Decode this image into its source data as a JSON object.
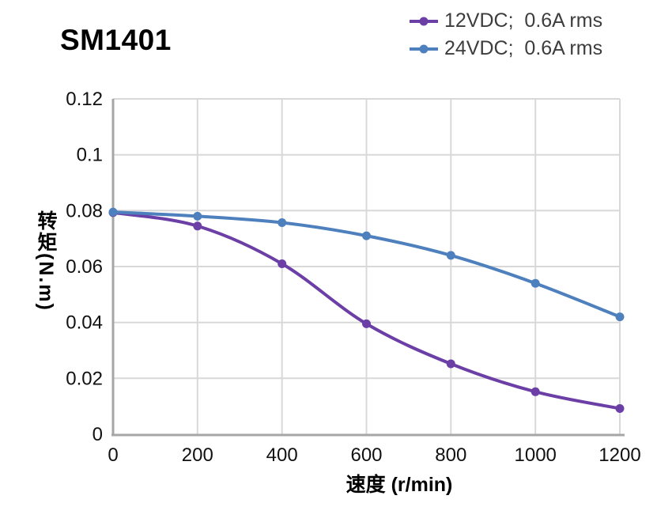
{
  "page": {
    "background": "#ffffff"
  },
  "chart_data": {
    "type": "line",
    "title": "SM1401",
    "xlabel": "速度 (r/min)",
    "ylabel": "转矩(N.m)",
    "xlim": [
      0,
      1200
    ],
    "ylim": [
      0,
      0.12
    ],
    "x_ticks": [
      0,
      200,
      400,
      600,
      800,
      1000,
      1200
    ],
    "y_ticks": [
      0,
      0.02,
      0.04,
      0.06,
      0.08,
      0.1,
      0.12
    ],
    "grid": true,
    "legend_position": "top-right",
    "x": [
      0,
      200,
      400,
      600,
      800,
      1000,
      1200
    ],
    "series": [
      {
        "key": "12vdc",
        "label": "12VDC;  0.6A rms",
        "color": "#6B3FA6",
        "values": [
          0.0793,
          0.0745,
          0.061,
          0.0395,
          0.0252,
          0.0152,
          0.0092
        ]
      },
      {
        "key": "24vdc",
        "label": "24VDC;  0.6A rms",
        "color": "#4E80BE",
        "values": [
          0.0795,
          0.078,
          0.0757,
          0.071,
          0.064,
          0.054,
          0.042
        ]
      }
    ],
    "style": {
      "grid_color": "#D8D8D8",
      "spine_color": "#A6A6A6",
      "tick_text_color": "#111111",
      "legend_text_color": "#3d3d3d",
      "marker": "circle"
    }
  }
}
